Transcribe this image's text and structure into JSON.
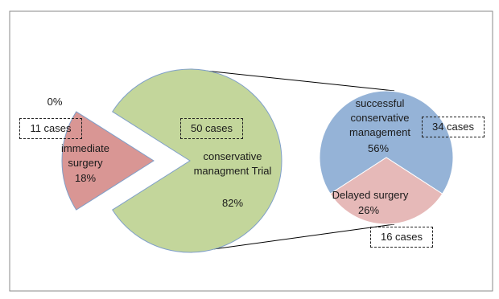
{
  "chart_data": [
    {
      "type": "pie",
      "categories": [
        "immediate surgery",
        "conservative managment Trial"
      ],
      "values": [
        18,
        82
      ],
      "value_labels": [
        "18%",
        "82%"
      ],
      "colors": [
        "#d99694",
        "#c3d69b"
      ],
      "annotations": [
        "0%",
        "11 cases",
        "50 cases"
      ]
    },
    {
      "type": "pie",
      "categories": [
        "successful conservative management",
        "Delayed surgery"
      ],
      "values": [
        56,
        26
      ],
      "value_labels": [
        "56%",
        "26%"
      ],
      "colors": [
        "#95b3d7",
        "#e6b9b8"
      ],
      "annotations": [
        "34 cases",
        "16 cases"
      ]
    }
  ]
}
